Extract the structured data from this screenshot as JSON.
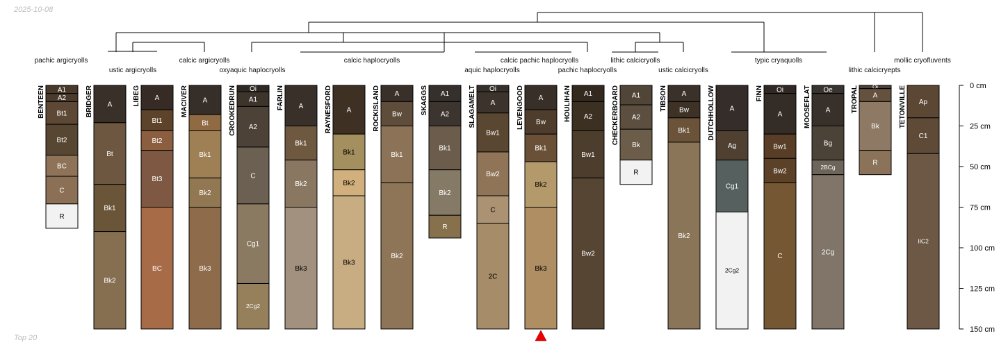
{
  "header": {
    "date": "2025-10-08"
  },
  "footer": {
    "caption": "Top 20"
  },
  "colors": {
    "marker": "#ee0000",
    "line": "#000000",
    "label": "#111111"
  },
  "chart_data": {
    "type": "soil-profile-sketch",
    "title": "",
    "depth_axis": {
      "unit": "cm",
      "min": 0,
      "max": 150,
      "ticks": [
        0,
        25,
        50,
        75,
        100,
        125,
        150
      ],
      "tick_labels": [
        "0 cm",
        "25 cm",
        "50 cm",
        "75 cm",
        "100 cm",
        "125 cm",
        "150 cm"
      ]
    },
    "marked_profile": "LEVENGOOD",
    "subgroup_labels": [
      {
        "text": "pachic argicryolls",
        "row": 0
      },
      {
        "text": "ustic argicryolls",
        "row": 1
      },
      {
        "text": "calcic argicryolls",
        "row": 0
      },
      {
        "text": "oxyaquic haplocryolls",
        "row": 1
      },
      {
        "text": "calcic haplocryolls",
        "row": 0
      },
      {
        "text": "aquic haplocryolls",
        "row": 1
      },
      {
        "text": "calcic pachic haplocryolls",
        "row": 0
      },
      {
        "text": "pachic haplocryolls",
        "row": 1
      },
      {
        "text": "lithic calcicryolls",
        "row": 0
      },
      {
        "text": "ustic calcicryolls",
        "row": 1
      },
      {
        "text": "typic cryaquolls",
        "row": 0
      },
      {
        "text": "lithic calcicryepts",
        "row": 1
      },
      {
        "text": "mollic cryofluvents",
        "row": 0
      }
    ],
    "profiles": [
      {
        "name": "BENTEEN",
        "horizons": [
          {
            "name": "A1",
            "top": 0,
            "bottom": 5,
            "color": "#48392a"
          },
          {
            "name": "A2",
            "top": 5,
            "bottom": 10,
            "color": "#4a3b2c"
          },
          {
            "name": "Bt1",
            "top": 10,
            "bottom": 24,
            "color": "#5c4835"
          },
          {
            "name": "Bt2",
            "top": 24,
            "bottom": 43,
            "color": "#574631"
          },
          {
            "name": "BC",
            "top": 43,
            "bottom": 56,
            "color": "#8e7358"
          },
          {
            "name": "C",
            "top": 56,
            "bottom": 73,
            "color": "#8c7055"
          },
          {
            "name": "R",
            "top": 73,
            "bottom": 88,
            "color": "#f2f2f2"
          }
        ]
      },
      {
        "name": "BRIDGER",
        "horizons": [
          {
            "name": "A",
            "top": 0,
            "bottom": 23,
            "color": "#3a302a"
          },
          {
            "name": "Bt",
            "top": 23,
            "bottom": 61,
            "color": "#6e5740"
          },
          {
            "name": "Bk1",
            "top": 61,
            "bottom": 90,
            "color": "#6b5538"
          },
          {
            "name": "Bk2",
            "top": 90,
            "bottom": 150,
            "color": "#866f51"
          }
        ]
      },
      {
        "name": "LIBEG",
        "horizons": [
          {
            "name": "A",
            "top": 0,
            "bottom": 15,
            "color": "#362b25"
          },
          {
            "name": "Bt1",
            "top": 15,
            "bottom": 28,
            "color": "#5e432b"
          },
          {
            "name": "Bt2",
            "top": 28,
            "bottom": 40,
            "color": "#8b5e3f"
          },
          {
            "name": "Bt3",
            "top": 40,
            "bottom": 75,
            "color": "#7e5842"
          },
          {
            "name": "BC",
            "top": 75,
            "bottom": 150,
            "color": "#a76b48"
          }
        ]
      },
      {
        "name": "MACIVER",
        "horizons": [
          {
            "name": "A",
            "top": 0,
            "bottom": 18,
            "color": "#362e29"
          },
          {
            "name": "Bt",
            "top": 18,
            "bottom": 28,
            "color": "#8f6a43"
          },
          {
            "name": "Bk1",
            "top": 28,
            "bottom": 57,
            "color": "#9f8055"
          },
          {
            "name": "Bk2",
            "top": 57,
            "bottom": 75,
            "color": "#917752"
          },
          {
            "name": "Bk3",
            "top": 75,
            "bottom": 150,
            "color": "#8d6b4b"
          }
        ]
      },
      {
        "name": "CROOKEDRUN",
        "horizons": [
          {
            "name": "Oi",
            "top": 0,
            "bottom": 4,
            "color": "#2e2924"
          },
          {
            "name": "A1",
            "top": 4,
            "bottom": 13,
            "color": "#3d342c"
          },
          {
            "name": "A2",
            "top": 13,
            "bottom": 38,
            "color": "#4d4238"
          },
          {
            "name": "C",
            "top": 38,
            "bottom": 73,
            "color": "#6b6052"
          },
          {
            "name": "Cg1",
            "top": 73,
            "bottom": 122,
            "color": "#8a7a62"
          },
          {
            "name": "2Cg2",
            "top": 122,
            "bottom": 150,
            "color": "#96805c"
          }
        ]
      },
      {
        "name": "FARLIN",
        "horizons": [
          {
            "name": "A",
            "top": 0,
            "bottom": 25,
            "color": "#39302a"
          },
          {
            "name": "Bk1",
            "top": 25,
            "bottom": 46,
            "color": "#6e5840"
          },
          {
            "name": "Bk2",
            "top": 46,
            "bottom": 75,
            "color": "#8a7762"
          },
          {
            "name": "Bk3",
            "top": 75,
            "bottom": 150,
            "color": "#a2917e"
          }
        ]
      },
      {
        "name": "RAYNESFORD",
        "horizons": [
          {
            "name": "A",
            "top": 0,
            "bottom": 30,
            "color": "#3e3124"
          },
          {
            "name": "Bk1",
            "top": 30,
            "bottom": 52,
            "color": "#a4905f"
          },
          {
            "name": "Bk2",
            "top": 52,
            "bottom": 68,
            "color": "#d1b07d"
          },
          {
            "name": "Bk3",
            "top": 68,
            "bottom": 150,
            "color": "#c9ad82"
          }
        ]
      },
      {
        "name": "ROCKISLAND",
        "horizons": [
          {
            "name": "A",
            "top": 0,
            "bottom": 10,
            "color": "#39302a"
          },
          {
            "name": "Bw",
            "top": 10,
            "bottom": 25,
            "color": "#5f4d3b"
          },
          {
            "name": "Bk1",
            "top": 25,
            "bottom": 60,
            "color": "#8c7256"
          },
          {
            "name": "Bk2",
            "top": 60,
            "bottom": 150,
            "color": "#8f7558"
          }
        ]
      },
      {
        "name": "SKAGGS",
        "horizons": [
          {
            "name": "A1",
            "top": 0,
            "bottom": 10,
            "color": "#36302c"
          },
          {
            "name": "A2",
            "top": 10,
            "bottom": 25,
            "color": "#3c352f"
          },
          {
            "name": "Bk1",
            "top": 25,
            "bottom": 52,
            "color": "#6b5c4b"
          },
          {
            "name": "Bk2",
            "top": 52,
            "bottom": 80,
            "color": "#857a66"
          },
          {
            "name": "R",
            "top": 80,
            "bottom": 94,
            "color": "#87704c"
          }
        ]
      },
      {
        "name": "SLAGAMELT",
        "horizons": [
          {
            "name": "Oi",
            "top": 0,
            "bottom": 4,
            "color": "#35302c"
          },
          {
            "name": "A",
            "top": 4,
            "bottom": 17,
            "color": "#3c332c"
          },
          {
            "name": "Bw1",
            "top": 17,
            "bottom": 41,
            "color": "#5a4732"
          },
          {
            "name": "Bw2",
            "top": 41,
            "bottom": 68,
            "color": "#907458"
          },
          {
            "name": "C",
            "top": 68,
            "bottom": 85,
            "color": "#aa9273"
          },
          {
            "name": "2C",
            "top": 85,
            "bottom": 150,
            "color": "#a78c6a"
          }
        ]
      },
      {
        "name": "LEVENGOOD",
        "horizons": [
          {
            "name": "A",
            "top": 0,
            "bottom": 15,
            "color": "#382f28"
          },
          {
            "name": "Bw",
            "top": 15,
            "bottom": 30,
            "color": "#4e3d2d"
          },
          {
            "name": "Bk1",
            "top": 30,
            "bottom": 47,
            "color": "#6a5036"
          },
          {
            "name": "Bk2",
            "top": 47,
            "bottom": 75,
            "color": "#b49a6b"
          },
          {
            "name": "Bk3",
            "top": 75,
            "bottom": 150,
            "color": "#ae8e62"
          }
        ]
      },
      {
        "name": "HOULIHAN",
        "horizons": [
          {
            "name": "A1",
            "top": 0,
            "bottom": 10,
            "color": "#33291f"
          },
          {
            "name": "A2",
            "top": 10,
            "bottom": 28,
            "color": "#3c3023"
          },
          {
            "name": "Bw1",
            "top": 28,
            "bottom": 57,
            "color": "#4d3d2c"
          },
          {
            "name": "Bw2",
            "top": 57,
            "bottom": 150,
            "color": "#574533"
          }
        ]
      },
      {
        "name": "CHECKERBOARD",
        "horizons": [
          {
            "name": "A1",
            "top": 0,
            "bottom": 12,
            "color": "#504537"
          },
          {
            "name": "A2",
            "top": 12,
            "bottom": 27,
            "color": "#5c4f3f"
          },
          {
            "name": "Bk",
            "top": 27,
            "bottom": 46,
            "color": "#6c5c4a"
          },
          {
            "name": "R",
            "top": 46,
            "bottom": 61,
            "color": "#f2f2f2"
          }
        ]
      },
      {
        "name": "TIBSON",
        "horizons": [
          {
            "name": "A",
            "top": 0,
            "bottom": 10,
            "color": "#3a322a"
          },
          {
            "name": "Bw",
            "top": 10,
            "bottom": 20,
            "color": "#3e3227"
          },
          {
            "name": "Bk1",
            "top": 20,
            "bottom": 35,
            "color": "#6a5339"
          },
          {
            "name": "Bk2",
            "top": 35,
            "bottom": 150,
            "color": "#8b7558"
          }
        ]
      },
      {
        "name": "DUTCHHOLLOW",
        "horizons": [
          {
            "name": "A",
            "top": 0,
            "bottom": 28,
            "color": "#352d29"
          },
          {
            "name": "Ag",
            "top": 28,
            "bottom": 46,
            "color": "#4f4032"
          },
          {
            "name": "Cg1",
            "top": 46,
            "bottom": 78,
            "color": "#56605f"
          },
          {
            "name": "2Cg2",
            "top": 78,
            "bottom": 150,
            "color": "#f2f2f2"
          }
        ]
      },
      {
        "name": "FINN",
        "horizons": [
          {
            "name": "Oi",
            "top": 0,
            "bottom": 5,
            "color": "#302824"
          },
          {
            "name": "A",
            "top": 5,
            "bottom": 30,
            "color": "#342c26"
          },
          {
            "name": "Bw1",
            "top": 30,
            "bottom": 45,
            "color": "#583e26"
          },
          {
            "name": "Bw2",
            "top": 45,
            "bottom": 60,
            "color": "#5a4128"
          },
          {
            "name": "C",
            "top": 60,
            "bottom": 150,
            "color": "#755833"
          }
        ]
      },
      {
        "name": "MOOSEFLAT",
        "horizons": [
          {
            "name": "Oe",
            "top": 0,
            "bottom": 5,
            "color": "#3a3430"
          },
          {
            "name": "A",
            "top": 5,
            "bottom": 25,
            "color": "#38302a"
          },
          {
            "name": "Bg",
            "top": 25,
            "bottom": 46,
            "color": "#4c4338"
          },
          {
            "name": "2BCg",
            "top": 46,
            "bottom": 55,
            "color": "#6e655a"
          },
          {
            "name": "2Cg",
            "top": 55,
            "bottom": 150,
            "color": "#807568"
          }
        ]
      },
      {
        "name": "TROPAL",
        "horizons": [
          {
            "name": "Oi",
            "top": 0,
            "bottom": 2,
            "color": "#4e4136"
          },
          {
            "name": "A",
            "top": 2,
            "bottom": 10,
            "color": "#64513e"
          },
          {
            "name": "Bk",
            "top": 10,
            "bottom": 40,
            "color": "#8e7a64"
          },
          {
            "name": "R",
            "top": 40,
            "bottom": 55,
            "color": "#8a7359"
          }
        ]
      },
      {
        "name": "TETONVILLE",
        "horizons": [
          {
            "name": "Ap",
            "top": 0,
            "bottom": 20,
            "color": "#5c4634"
          },
          {
            "name": "C1",
            "top": 20,
            "bottom": 42,
            "color": "#5f4a37"
          },
          {
            "name": "IIC2",
            "top": 42,
            "bottom": 150,
            "color": "#6c5844"
          }
        ]
      }
    ]
  }
}
